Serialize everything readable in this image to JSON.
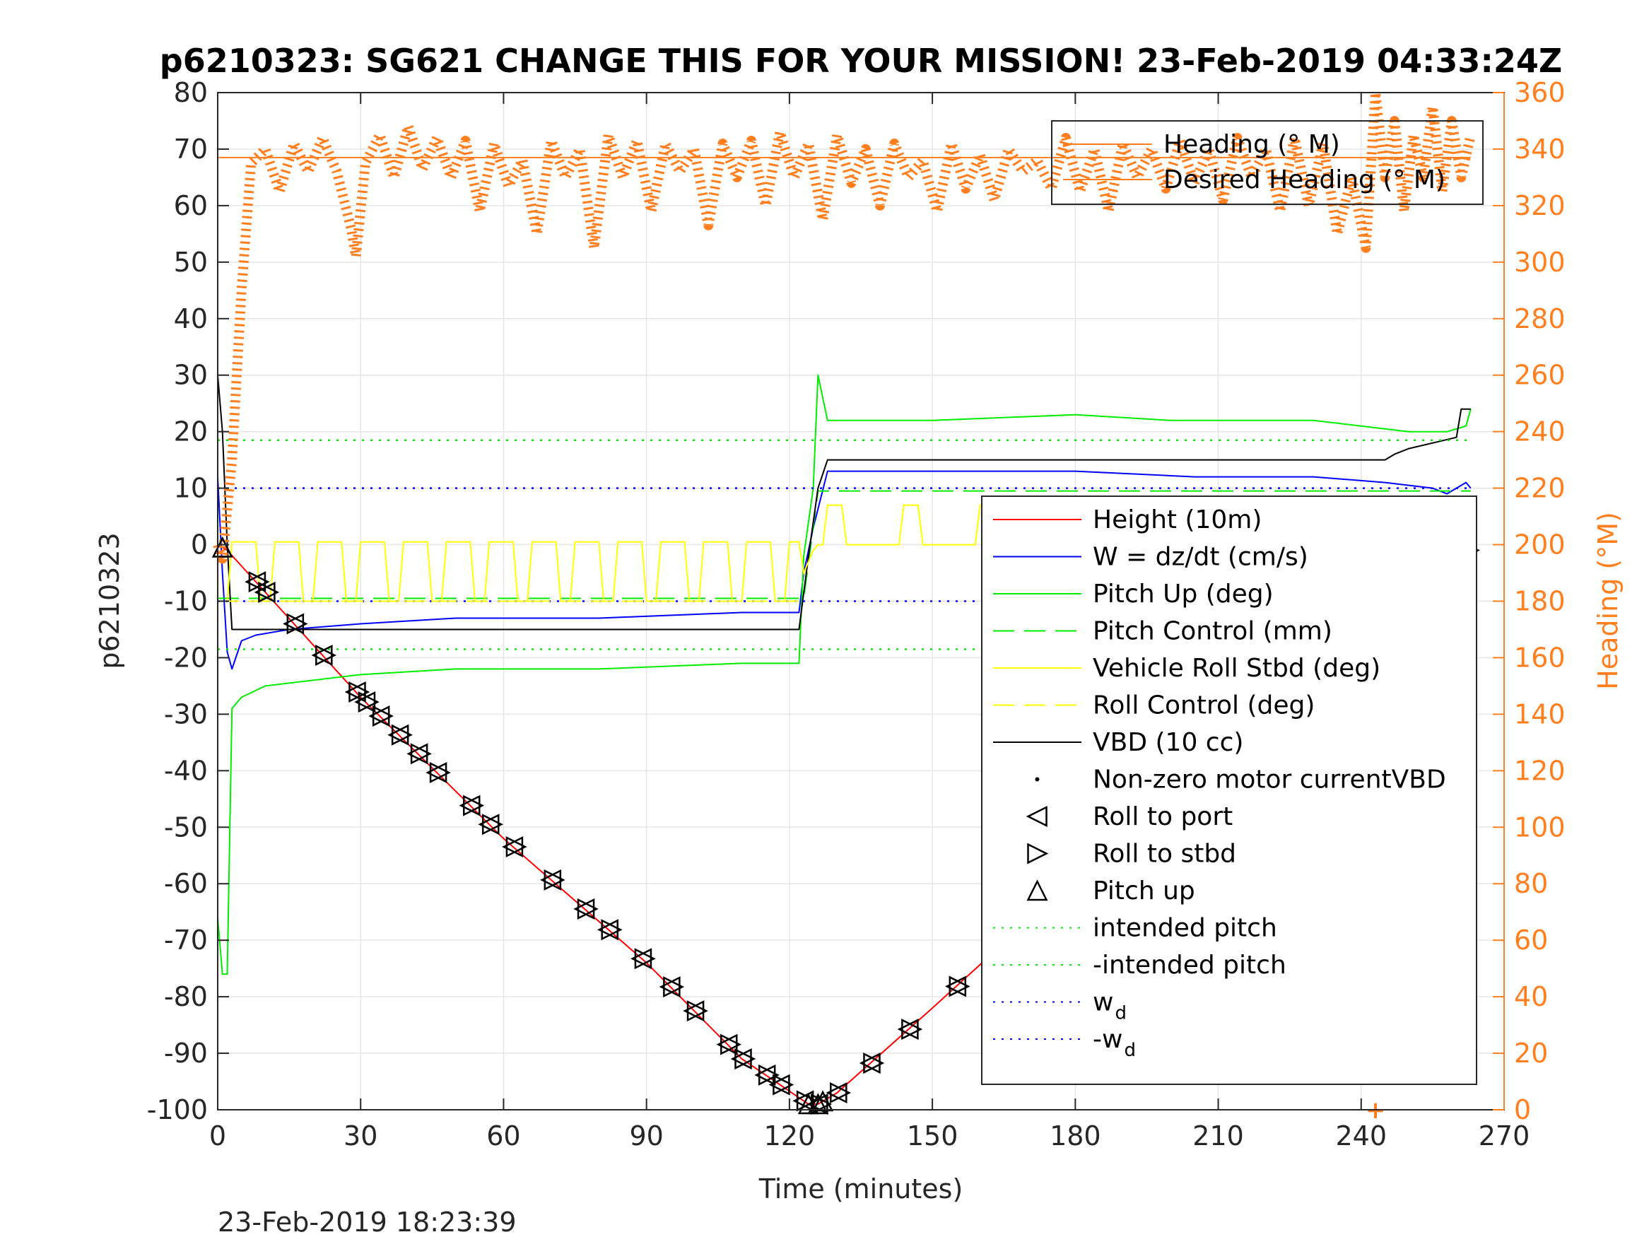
{
  "chart_data": {
    "type": "line",
    "title": "p6210323: SG621 CHANGE THIS FOR YOUR MISSION! 23-Feb-2019 04:33:24Z",
    "xlabel": "Time (minutes)",
    "ylabel_left": "p6210323",
    "ylabel_right": "Heading (°M)",
    "footer_timestamp": "23-Feb-2019 18:23:39",
    "xlim": [
      0,
      270
    ],
    "ylim_left": [
      -100,
      80
    ],
    "ylim_right": [
      0,
      360
    ],
    "x_ticks": [
      "0",
      "30",
      "60",
      "90",
      "120",
      "150",
      "180",
      "210",
      "240",
      "270"
    ],
    "y_ticks_left": [
      "80",
      "70",
      "60",
      "50",
      "40",
      "30",
      "20",
      "10",
      "0",
      "-10",
      "-20",
      "-30",
      "-40",
      "-50",
      "-60",
      "-70",
      "-80",
      "-90",
      "-100"
    ],
    "y_ticks_right": [
      "360",
      "340",
      "320",
      "300",
      "280",
      "260",
      "240",
      "220",
      "200",
      "180",
      "160",
      "140",
      "120",
      "100",
      "80",
      "60",
      "40",
      "20",
      "0"
    ],
    "grid": true,
    "colors": {
      "height": "#ff0000",
      "w": "#0000ff",
      "pitch": "#00ee00",
      "roll": "#ffff00",
      "vbd": "#000000",
      "heading": "#ff7f1f",
      "axis_right": "#ff7f1f"
    },
    "legend_heading": {
      "placement": "top-right",
      "entries": [
        "Heading (° M)",
        "Desired Heading (° M)"
      ]
    },
    "legend_main": {
      "placement": "right",
      "entries": [
        {
          "label": "Height (10m)",
          "style": "line",
          "color": "#ff0000",
          "dash": "solid"
        },
        {
          "label": "W = dz/dt (cm/s)",
          "style": "line",
          "color": "#0000ff",
          "dash": "solid"
        },
        {
          "label": "Pitch Up (deg)",
          "style": "line",
          "color": "#00ee00",
          "dash": "solid"
        },
        {
          "label": "Pitch Control (mm)",
          "style": "line",
          "color": "#00ee00",
          "dash": "dashed"
        },
        {
          "label": "Vehicle Roll Stbd (deg)",
          "style": "line",
          "color": "#ffff00",
          "dash": "solid"
        },
        {
          "label": "Roll Control (deg)",
          "style": "line",
          "color": "#ffff00",
          "dash": "dashed"
        },
        {
          "label": "VBD (10 cc)",
          "style": "line",
          "color": "#000000",
          "dash": "solid"
        },
        {
          "label": "Non-zero motor currentVBD",
          "style": "dot",
          "color": "#000000",
          "dash": "none"
        },
        {
          "label": "Roll to port",
          "style": "tri-left",
          "color": "#000000",
          "dash": "none"
        },
        {
          "label": "Roll to stbd",
          "style": "tri-right",
          "color": "#000000",
          "dash": "none"
        },
        {
          "label": "Pitch up",
          "style": "tri-up",
          "color": "#000000",
          "dash": "none"
        },
        {
          "label": "intended pitch",
          "style": "line",
          "color": "#00ee00",
          "dash": "dotted"
        },
        {
          "label": "-intended pitch",
          "style": "line",
          "color": "#00ee00",
          "dash": "dotted"
        },
        {
          "label": "w",
          "sub": "d",
          "style": "line",
          "color": "#0000ff",
          "dash": "dotted"
        },
        {
          "label": "-w",
          "sub": "d",
          "style": "line",
          "color": "#0000ff",
          "dash": "dotted"
        }
      ]
    },
    "series": [
      {
        "name": "Height (10m)",
        "axis": "left",
        "x": [
          0,
          2,
          30,
          60,
          90,
          110,
          124,
          126,
          130,
          150,
          180,
          210,
          240,
          262
        ],
        "y": [
          0,
          -1,
          -27,
          -52,
          -74,
          -91,
          -99,
          -99,
          -97,
          -82,
          -59,
          -34,
          -14,
          -1
        ]
      },
      {
        "name": "W = dz/dt (cm/s)",
        "axis": "left",
        "x": [
          0,
          1,
          2,
          3,
          5,
          8,
          15,
          30,
          50,
          80,
          110,
          122,
          123,
          125,
          128,
          150,
          180,
          205,
          230,
          245,
          255,
          258,
          262,
          263
        ],
        "y": [
          12,
          -5,
          -19,
          -22,
          -17,
          -16,
          -15,
          -14,
          -13,
          -13,
          -12,
          -12,
          -5,
          3,
          13,
          13,
          13,
          12,
          12,
          11,
          10,
          9,
          11,
          10
        ]
      },
      {
        "name": "Pitch Up (deg)",
        "axis": "left",
        "x": [
          0,
          1,
          2,
          3,
          5,
          10,
          20,
          30,
          50,
          80,
          110,
          122,
          123,
          125,
          126,
          128,
          150,
          180,
          200,
          230,
          240,
          250,
          258,
          262,
          263
        ],
        "y": [
          -66,
          -76,
          -76,
          -29,
          -27,
          -25,
          -24,
          -23,
          -22,
          -22,
          -21,
          -21,
          -2,
          10,
          30,
          22,
          22,
          23,
          22,
          22,
          21,
          20,
          20,
          21,
          24
        ]
      },
      {
        "name": "Pitch Control (mm)",
        "axis": "left",
        "x": [
          0,
          123,
          126,
          263
        ],
        "y": [
          -9.5,
          -9.5,
          9.5,
          9.5
        ]
      },
      {
        "name": "VBD (10 cc)",
        "axis": "left",
        "x": [
          0,
          1,
          2,
          3,
          121,
          122,
          124,
          126,
          128,
          245,
          247,
          250,
          255,
          260,
          261,
          263
        ],
        "y": [
          30,
          20,
          0,
          -15,
          -15,
          -15,
          -2,
          10,
          15,
          15,
          16,
          17,
          18,
          19,
          24,
          24
        ]
      },
      {
        "name": "intended pitch",
        "axis": "left",
        "x": [
          0,
          263
        ],
        "y": [
          18.5,
          18.5
        ]
      },
      {
        "name": "-intended pitch",
        "axis": "left",
        "x": [
          0,
          263
        ],
        "y": [
          -18.5,
          -18.5
        ]
      },
      {
        "name": "w_d",
        "axis": "left",
        "x": [
          0,
          263
        ],
        "y": [
          10,
          10
        ]
      },
      {
        "name": "-w_d",
        "axis": "left",
        "x": [
          0,
          263
        ],
        "y": [
          -10,
          -10
        ]
      },
      {
        "name": "Desired Heading (° M)",
        "axis": "right",
        "x": [
          0,
          263
        ],
        "y": [
          337,
          337
        ]
      },
      {
        "name": "Heading (° M)",
        "axis": "right",
        "x": [
          0,
          1,
          3,
          5,
          7,
          10,
          13,
          16,
          19,
          22,
          25,
          28,
          29,
          31,
          34,
          37,
          40,
          43,
          46,
          49,
          52,
          55,
          58,
          61,
          64,
          67,
          70,
          73,
          76,
          79,
          82,
          85,
          88,
          91,
          94,
          97,
          100,
          103,
          106,
          109,
          112,
          115,
          118,
          121,
          124,
          127,
          130,
          133,
          136,
          139,
          142,
          145,
          148,
          151,
          154,
          157,
          160,
          163,
          166,
          169,
          172,
          175,
          178,
          181,
          184,
          187,
          190,
          193,
          196,
          199,
          202,
          205,
          208,
          211,
          214,
          217,
          220,
          223,
          226,
          229,
          232,
          235,
          238,
          241,
          243,
          245,
          247,
          249,
          251,
          253,
          255,
          257,
          259,
          261,
          263
        ],
        "y": [
          200,
          195,
          230,
          290,
          335,
          340,
          325,
          342,
          332,
          344,
          332,
          312,
          302,
          335,
          345,
          330,
          348,
          333,
          344,
          330,
          343,
          318,
          342,
          327,
          336,
          310,
          343,
          330,
          340,
          305,
          345,
          330,
          343,
          318,
          342,
          332,
          340,
          313,
          342,
          330,
          343,
          320,
          346,
          330,
          342,
          315,
          345,
          328,
          340,
          320,
          342,
          330,
          336,
          318,
          342,
          326,
          338,
          322,
          340,
          332,
          336,
          326,
          344,
          325,
          340,
          318,
          342,
          330,
          340,
          326,
          343,
          328,
          340,
          322,
          344,
          330,
          340,
          318,
          344,
          320,
          342,
          310,
          330,
          305,
          360,
          330,
          350,
          318,
          345,
          330,
          355,
          325,
          350,
          330,
          345
        ]
      }
    ],
    "markers": {
      "roll_port_and_stbd_x": [
        8,
        10,
        16,
        22,
        29,
        31,
        34,
        38,
        42,
        46,
        53,
        57,
        62,
        70,
        77,
        82,
        89,
        95,
        100,
        107,
        110,
        115,
        118,
        123,
        126,
        130,
        137,
        145,
        155,
        163,
        171,
        179,
        187,
        194,
        198,
        205,
        212,
        220,
        228,
        235,
        242,
        250,
        252,
        256,
        258,
        260,
        262
      ],
      "pitch_up_x": [
        1,
        124,
        126,
        127
      ]
    }
  }
}
